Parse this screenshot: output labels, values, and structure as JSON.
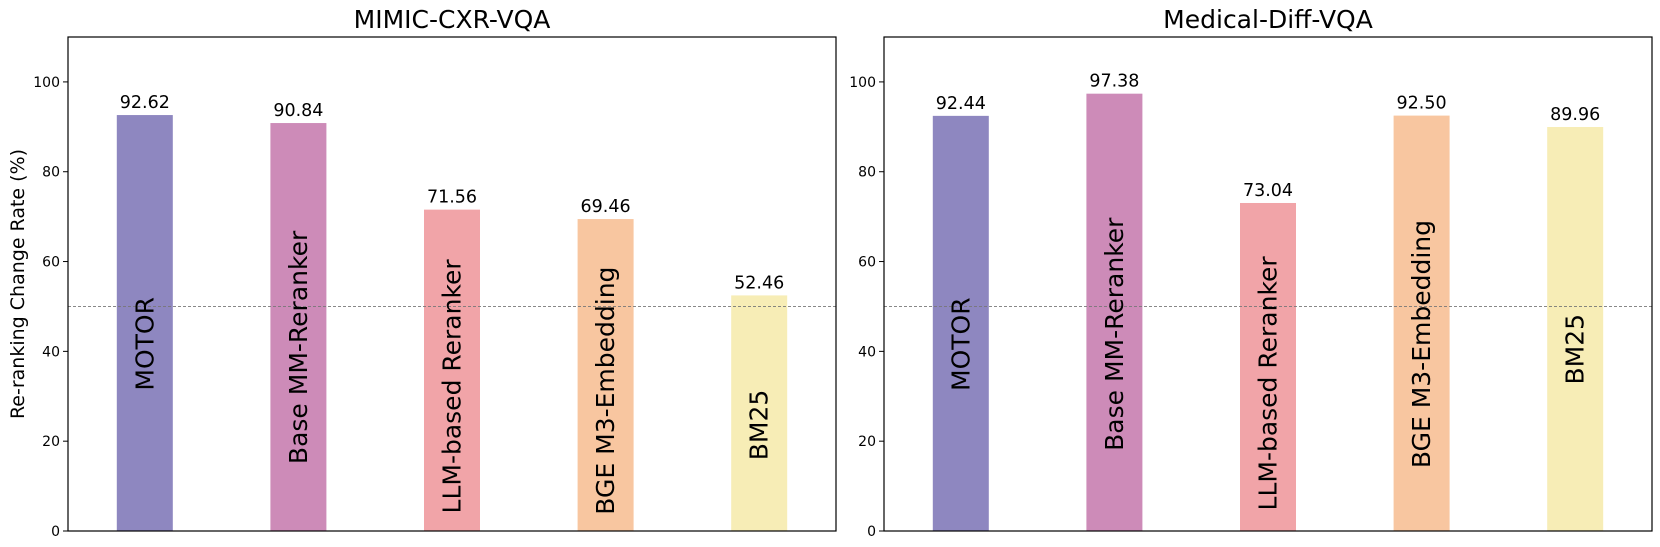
{
  "chart_data": [
    {
      "type": "bar",
      "title": "MIMIC-CXR-VQA",
      "xlabel": "",
      "ylabel": "Re-ranking Change Rate (%)",
      "ylim": [
        0,
        110
      ],
      "yticks": [
        "0",
        "20",
        "40",
        "60",
        "80",
        "100"
      ],
      "reference_line": 50,
      "categories": [
        "MOTOR",
        "Base MM-Reranker",
        "LLM-based Reranker",
        "BGE M3-Embedding",
        "BM25"
      ],
      "values": [
        92.62,
        90.84,
        71.56,
        69.46,
        52.46
      ],
      "value_labels": [
        "92.62",
        "90.84",
        "71.56",
        "69.46",
        "52.46"
      ],
      "colors": [
        "#8e87c0",
        "#cd8bb8",
        "#f1a4a8",
        "#f8c6a0",
        "#f7edb6"
      ]
    },
    {
      "type": "bar",
      "title": "Medical-Diff-VQA",
      "xlabel": "",
      "ylabel": "",
      "ylim": [
        0,
        110
      ],
      "yticks": [
        "0",
        "20",
        "40",
        "60",
        "80",
        "100"
      ],
      "reference_line": 50,
      "categories": [
        "MOTOR",
        "Base MM-Reranker",
        "LLM-based Reranker",
        "BGE M3-Embedding",
        "BM25"
      ],
      "values": [
        92.44,
        97.38,
        73.04,
        92.5,
        89.96
      ],
      "value_labels": [
        "92.44",
        "97.38",
        "73.04",
        "92.50",
        "89.96"
      ],
      "colors": [
        "#8e87c0",
        "#cd8bb8",
        "#f1a4a8",
        "#f8c6a0",
        "#f7edb6"
      ]
    }
  ]
}
